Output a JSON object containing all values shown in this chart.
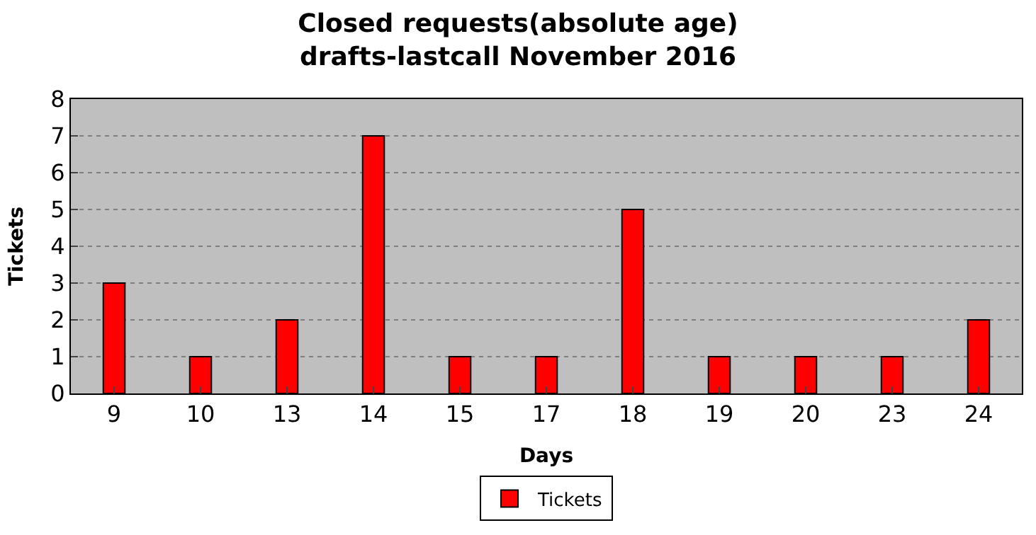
{
  "chart_data": {
    "type": "bar",
    "title": "Closed requests(absolute age)\ndrafts-lastcall November 2016",
    "xlabel": "Days",
    "ylabel": "Tickets",
    "categories": [
      "9",
      "10",
      "13",
      "14",
      "15",
      "17",
      "18",
      "19",
      "20",
      "23",
      "24"
    ],
    "series": [
      {
        "name": "Tickets",
        "color": "#ff0000",
        "values": [
          3,
          1,
          2,
          7,
          1,
          1,
          5,
          1,
          1,
          1,
          2
        ]
      }
    ],
    "ylim": [
      0,
      8
    ],
    "yticks": [
      0,
      1,
      2,
      3,
      4,
      5,
      6,
      7,
      8
    ],
    "grid": "y",
    "legend": "bottom"
  }
}
